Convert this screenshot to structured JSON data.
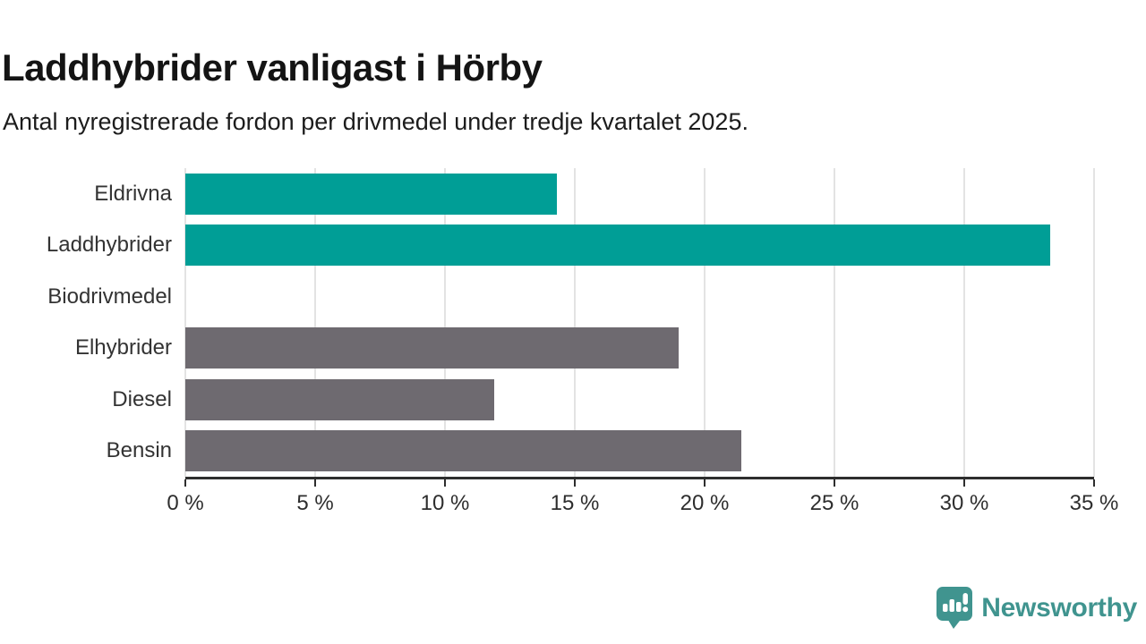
{
  "header": {
    "title": "Laddhybrider vanligast i Hörby",
    "subtitle": "Antal nyregistrerade fordon per drivmedel under tredje kvartalet 2025."
  },
  "chart_data": {
    "type": "bar",
    "orientation": "horizontal",
    "title": "Laddhybrider vanligast i Hörby",
    "subtitle": "Antal nyregistrerade fordon per drivmedel under tredje kvartalet 2025.",
    "categories": [
      "Eldrivna",
      "Laddhybrider",
      "Biodrivmedel",
      "Elhybrider",
      "Diesel",
      "Bensin"
    ],
    "values": [
      14.3,
      33.3,
      0,
      19.0,
      11.9,
      21.4
    ],
    "unit": "%",
    "xlim": [
      0,
      35
    ],
    "x_ticks": [
      0,
      5,
      10,
      15,
      20,
      25,
      30,
      35
    ],
    "x_tick_labels": [
      "0 %",
      "5 %",
      "10 %",
      "15 %",
      "20 %",
      "25 %",
      "30 %",
      "35 %"
    ],
    "bar_colors": [
      "#009e96",
      "#009e96",
      "#6e6a70",
      "#6e6a70",
      "#6e6a70",
      "#6e6a70"
    ],
    "grid": true,
    "gridline_color": "#e3e3e3",
    "axis_color": "#2e2e2e",
    "accent_color": "#009e96",
    "muted_color": "#6e6a70"
  },
  "footer": {
    "brand": "Newsworthy",
    "brand_color": "#40948f",
    "logo_icon": "newsworthy-speech-bubble-chart-icon"
  }
}
